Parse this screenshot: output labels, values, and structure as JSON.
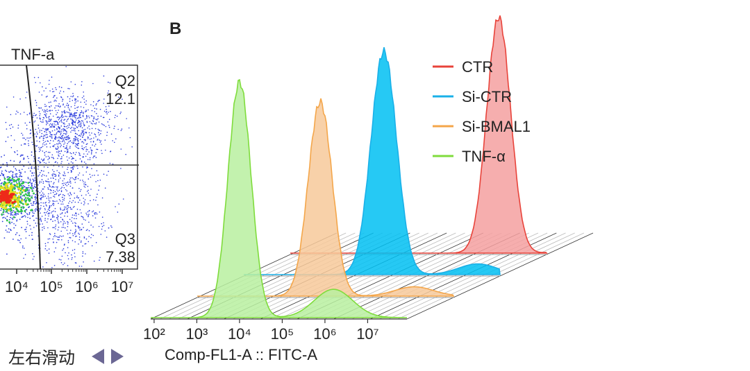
{
  "panel_label": "B",
  "hint": {
    "text": "左右滑动",
    "left_icon": "triangle-left-icon",
    "right_icon": "triangle-right-icon",
    "icon_color": "#6b6794"
  },
  "chart_data": [
    {
      "type": "scatter",
      "subtype": "flow-cytometry-quadrant",
      "ylabel": "TNF-a",
      "xticks": [
        "10⁴",
        "10⁵",
        "10⁶",
        "10⁷"
      ],
      "quadrants": [
        {
          "name": "Q2",
          "value": "12.1"
        },
        {
          "name": "Q3",
          "value": "7.38"
        }
      ]
    },
    {
      "type": "area",
      "subtype": "3d-offset-histogram",
      "xlabel": "Comp-FL1-A :: FITC-A",
      "xscale": "log",
      "xticks": [
        "10²",
        "10³",
        "10⁴",
        "10⁵",
        "10⁶",
        "10⁷"
      ],
      "legend_position": "top-right",
      "series": [
        {
          "name": "CTR",
          "color": "#e8433a",
          "fill": "#f5a0a0",
          "peak_log10": 6.8,
          "width": 0.28
        },
        {
          "name": "Si-CTR",
          "color": "#1ab0e8",
          "fill": "#00c0f2",
          "peak_log10": 5.2,
          "width": 0.3
        },
        {
          "name": "Si-BMAL1",
          "color": "#f4a64a",
          "fill": "#f7c99a",
          "peak_log10": 4.8,
          "width": 0.28
        },
        {
          "name": "TNF-α",
          "color": "#7fdc3c",
          "fill": "#b8f0a0",
          "peak_log10": 4.0,
          "width": 0.27
        }
      ]
    }
  ]
}
